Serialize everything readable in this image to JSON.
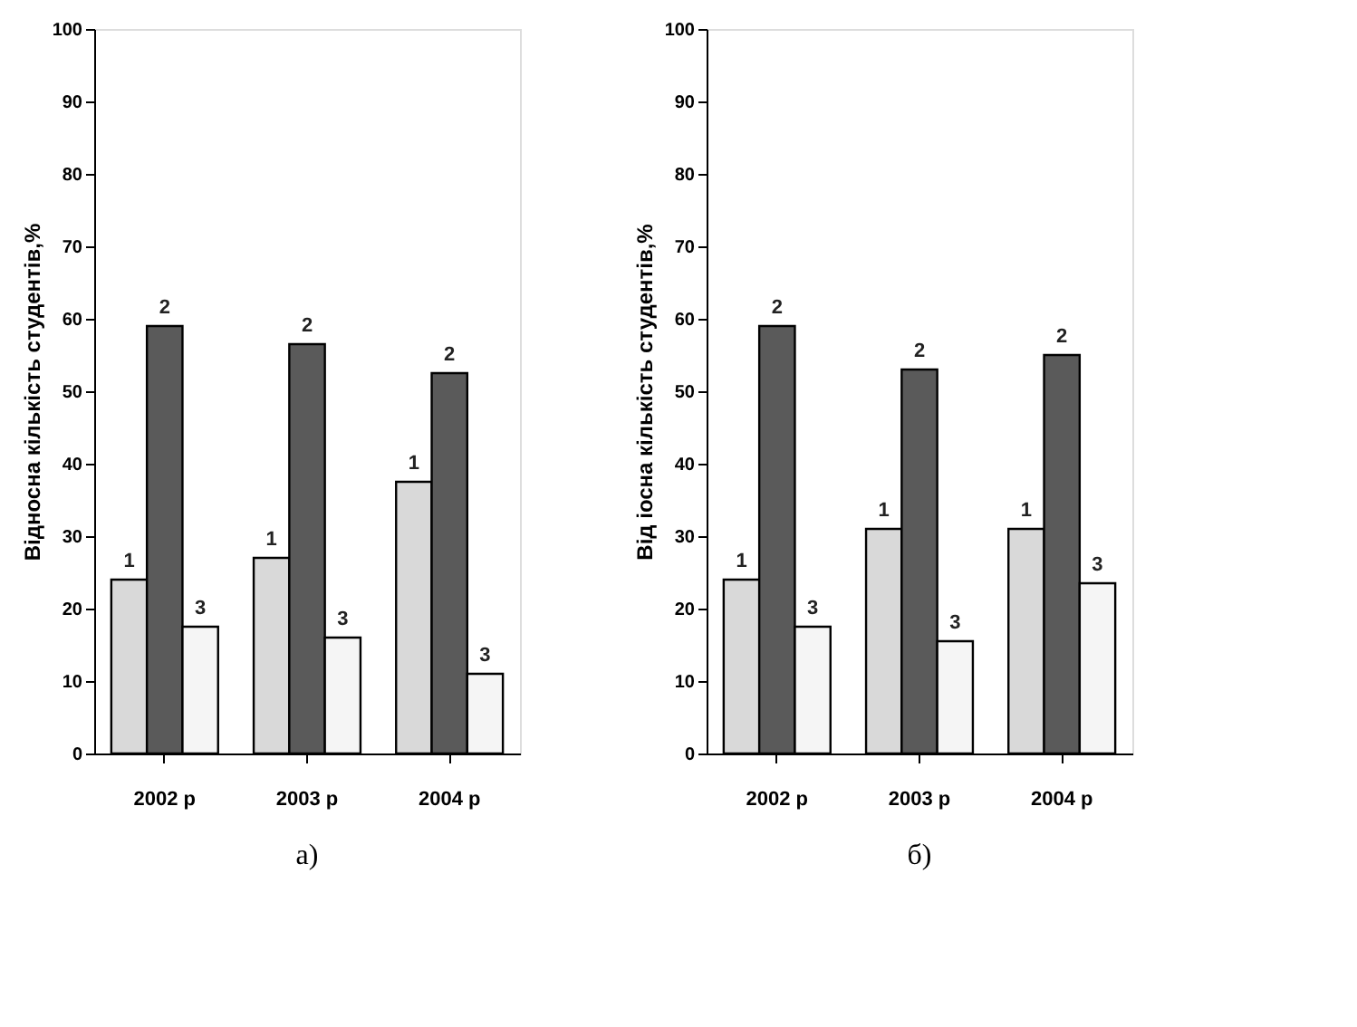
{
  "chart_data": [
    {
      "type": "bar",
      "ylabel": "Відносна кількість студентів,%",
      "annotations": [
        "a)"
      ],
      "categories": [
        "2002 р",
        "2003 р",
        "2004 р"
      ],
      "series": [
        {
          "name": "1",
          "color": "#d9d9d9",
          "values": [
            24,
            27,
            37.5
          ]
        },
        {
          "name": "2",
          "color": "#5a5a5a",
          "values": [
            59,
            56.5,
            52.5
          ]
        },
        {
          "name": "3",
          "color": "#f5f5f5",
          "values": [
            17.5,
            16,
            11
          ]
        }
      ],
      "ylim": [
        0,
        100
      ],
      "yticks": [
        0,
        10,
        20,
        30,
        40,
        50,
        60,
        70,
        80,
        90,
        100
      ],
      "grid": false,
      "legend": false
    },
    {
      "type": "bar",
      "ylabel": "Від іосна кількість студентів,%",
      "annotations": [
        "б)"
      ],
      "categories": [
        "2002 р",
        "2003 р",
        "2004 р"
      ],
      "series": [
        {
          "name": "1",
          "color": "#d9d9d9",
          "values": [
            24,
            31,
            31
          ]
        },
        {
          "name": "2",
          "color": "#5a5a5a",
          "values": [
            59,
            53,
            55
          ]
        },
        {
          "name": "3",
          "color": "#f5f5f5",
          "values": [
            17.5,
            15.5,
            23.5
          ]
        }
      ],
      "ylim": [
        0,
        100
      ],
      "yticks": [
        0,
        10,
        20,
        30,
        40,
        50,
        60,
        70,
        80,
        90,
        100
      ],
      "grid": false,
      "legend": false
    }
  ]
}
